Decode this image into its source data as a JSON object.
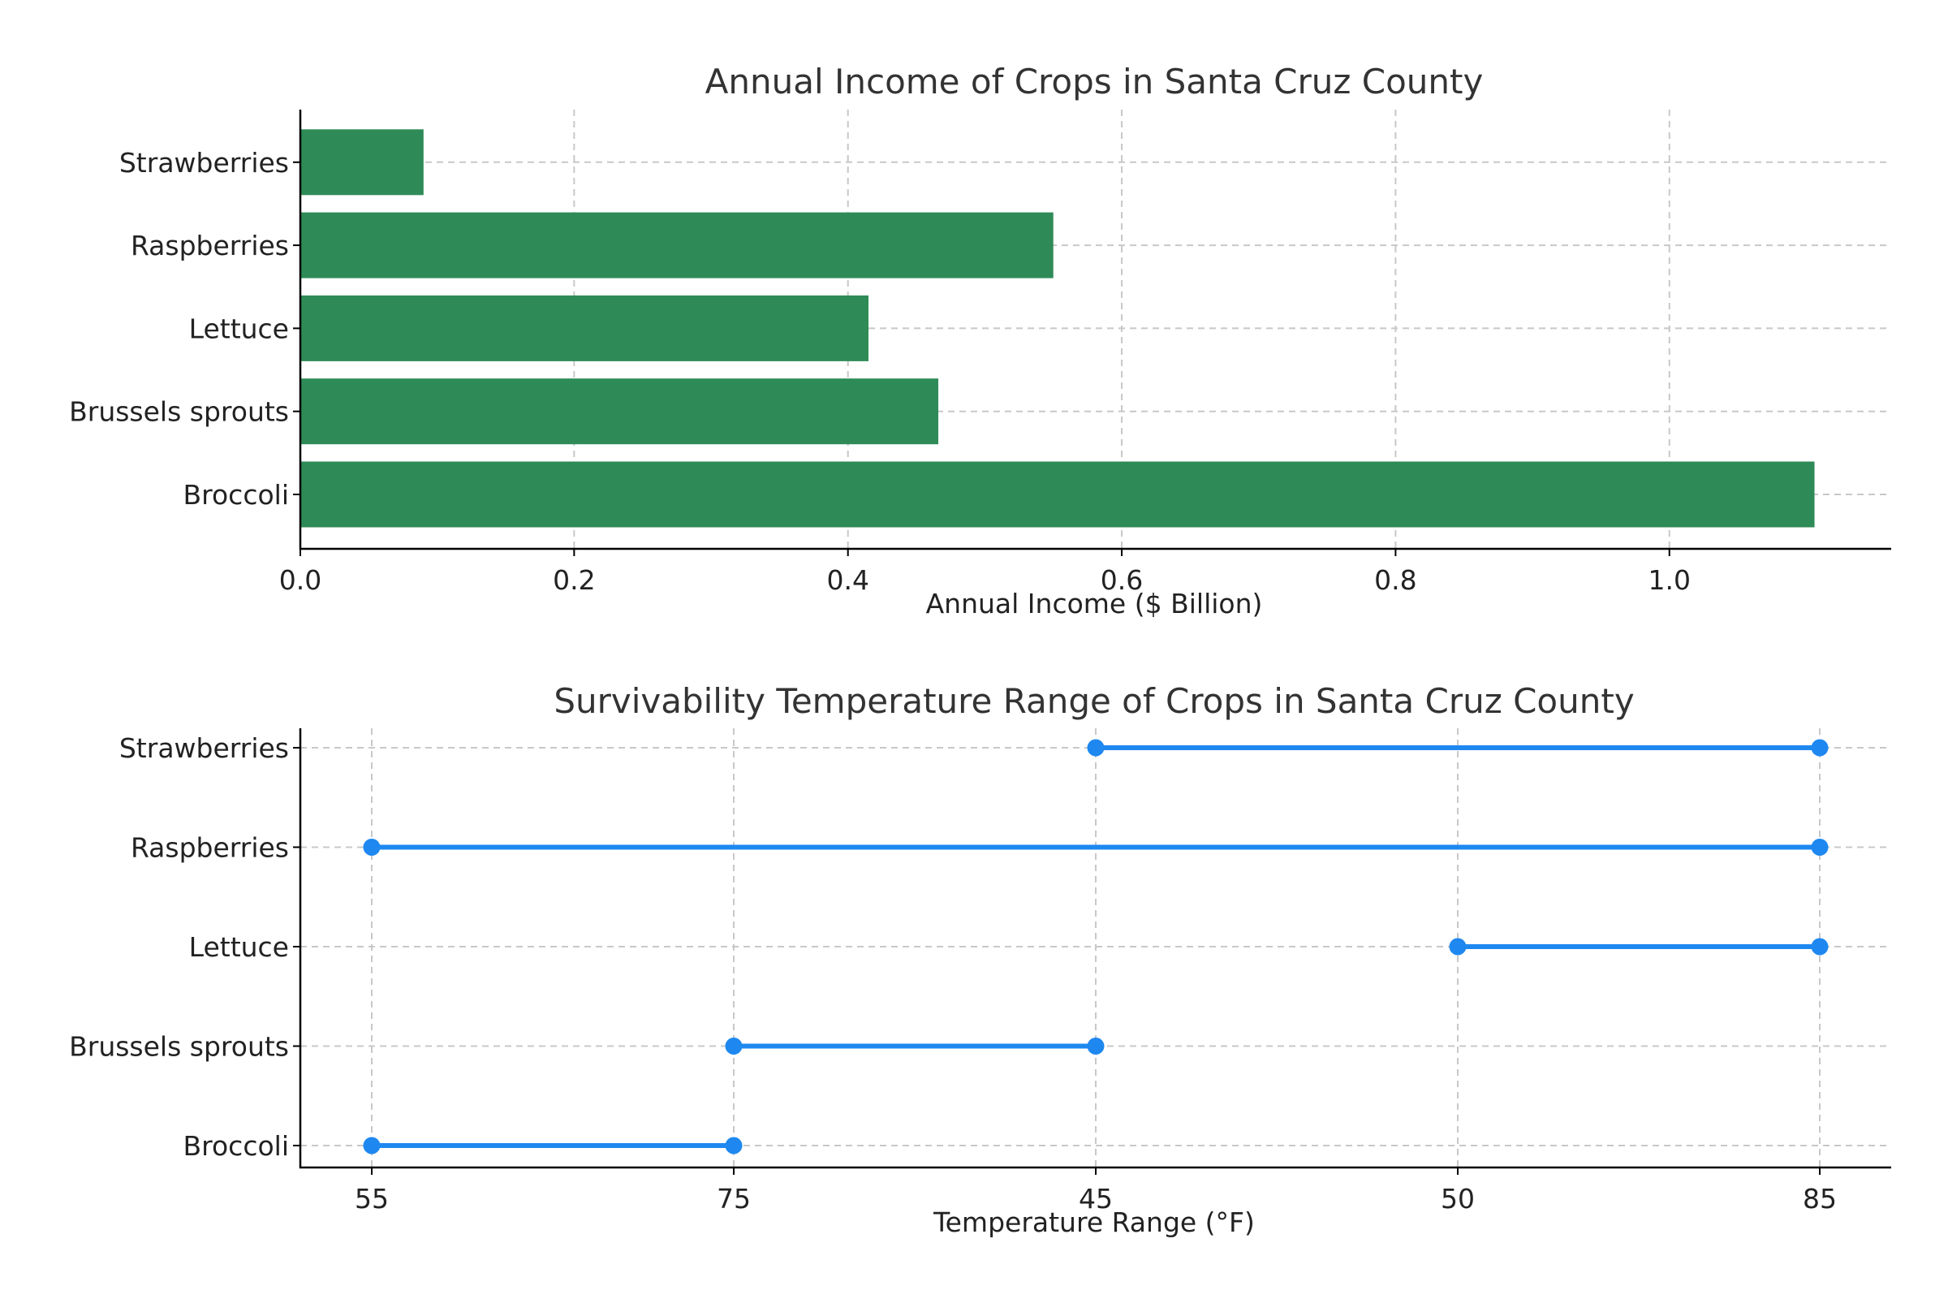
{
  "chart_data": [
    {
      "type": "bar",
      "orientation": "horizontal",
      "title": "Annual Income of Crops in Santa Cruz County",
      "xlabel": "Annual Income ($ Billion)",
      "ylabel": "",
      "categories": [
        "Broccoli",
        "Brussels sprouts",
        "Lettuce",
        "Raspberries",
        "Strawberries"
      ],
      "values": [
        1.106,
        0.466,
        0.415,
        0.55,
        0.09
      ],
      "xlim": [
        0,
        1.162
      ],
      "xticks": [
        0.0,
        0.2,
        0.4,
        0.6,
        0.8,
        1.0
      ],
      "xtick_labels": [
        "0.0",
        "0.2",
        "0.4",
        "0.6",
        "0.8",
        "1.0"
      ],
      "grid": true,
      "color": "#2e8b57"
    },
    {
      "type": "dumbbell",
      "title": "Survivability Temperature Range of Crops in Santa Cruz County",
      "xlabel": "Temperature Range (°F)",
      "ylabel": "",
      "categories": [
        "Broccoli",
        "Brussels sprouts",
        "Lettuce",
        "Raspberries",
        "Strawberries"
      ],
      "xtick_labels": [
        "55",
        "75",
        "45",
        "50",
        "85"
      ],
      "ranges": [
        {
          "category": "Broccoli",
          "low": "55",
          "high": "75"
        },
        {
          "category": "Brussels sprouts",
          "low": "75",
          "high": "45"
        },
        {
          "category": "Lettuce",
          "low": "50",
          "high": "85"
        },
        {
          "category": "Raspberries",
          "low": "55",
          "high": "85"
        },
        {
          "category": "Strawberries",
          "low": "45",
          "high": "85"
        }
      ],
      "grid": true,
      "color": "#1e88f0"
    }
  ]
}
